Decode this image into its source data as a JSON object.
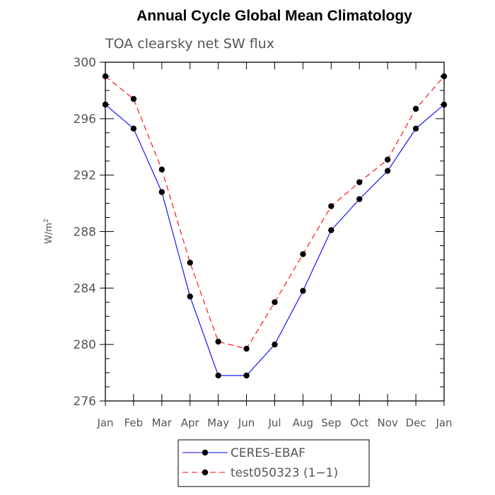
{
  "chart_data": {
    "type": "line",
    "title": "Annual Cycle Global Mean Climatology",
    "subtitle": "TOA clearsky net SW flux",
    "ylabel": "W/m",
    "ylabel_superscript": "2",
    "ylim": [
      276,
      300
    ],
    "yticks": [
      276,
      280,
      284,
      288,
      292,
      296,
      300
    ],
    "categories": [
      "Jan",
      "Feb",
      "Mar",
      "Apr",
      "May",
      "Jun",
      "Jul",
      "Aug",
      "Sep",
      "Oct",
      "Nov",
      "Dec",
      "Jan"
    ],
    "grid": false,
    "legend_position": "bottom",
    "series": [
      {
        "name": "CERES-EBAF",
        "color": "#0000ff",
        "line_style": "solid",
        "marker": "filled-circle",
        "values": [
          297.0,
          295.3,
          290.8,
          283.4,
          277.8,
          277.8,
          280.0,
          283.8,
          288.1,
          290.3,
          292.3,
          295.3,
          297.0
        ]
      },
      {
        "name": "test050323 (1−1)",
        "color": "#ff0000",
        "line_style": "dashed",
        "marker": "filled-circle",
        "values": [
          299.0,
          297.4,
          292.4,
          285.8,
          280.2,
          279.7,
          283.0,
          286.4,
          289.8,
          291.5,
          293.1,
          296.7,
          299.0
        ]
      }
    ]
  }
}
